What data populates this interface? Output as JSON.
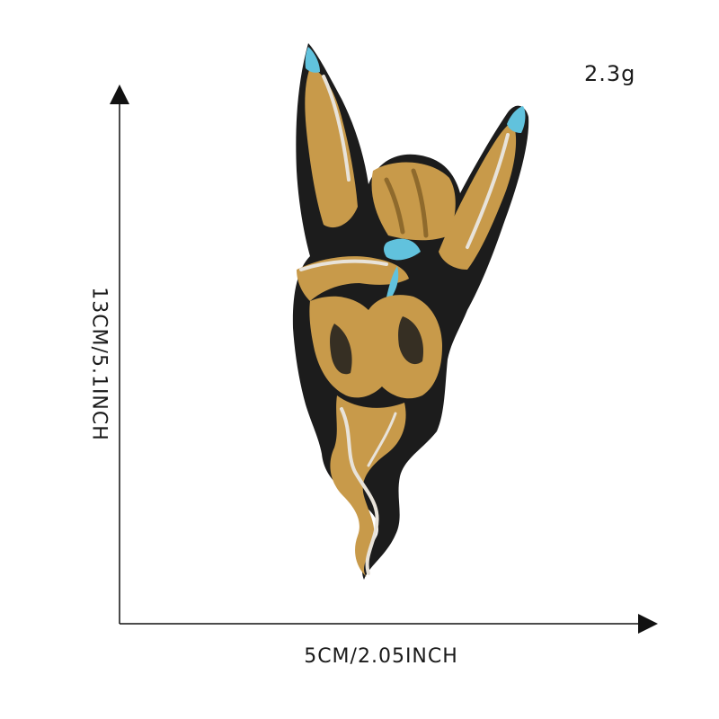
{
  "product": {
    "weight": "2.3g",
    "height_label": "13CM/5.1INCH",
    "width_label": "5CM/2.05INCH",
    "colors": {
      "gold": "#c89a4a",
      "shadow_gold": "#8f6a2c",
      "outline": "#1a1a1a",
      "highlight": "#e8e3da",
      "nail_blue": "#61c2dd"
    }
  }
}
